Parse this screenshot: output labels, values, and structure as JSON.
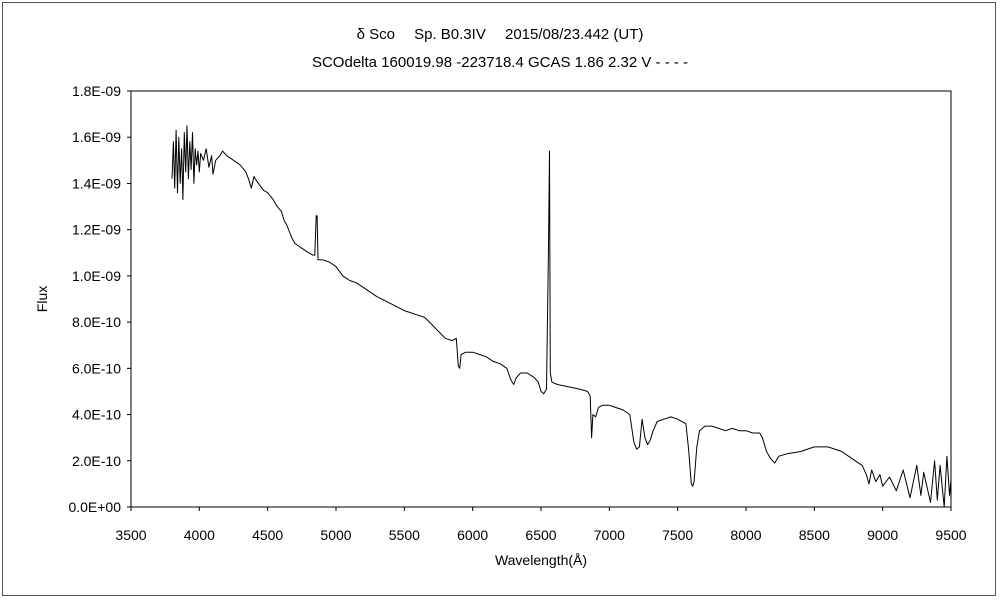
{
  "chart_data": {
    "type": "line",
    "title": "δ Sco　 Sp. B0.3IV　 2015/08/23.442 (UT)",
    "subtitle": "SCOdelta 160019.98 -223718.4 GCAS 1.86 2.32 V - - - -",
    "xlabel": "Wavelength(Å)",
    "ylabel": "Flux",
    "xlim": [
      3500,
      9500
    ],
    "ylim": [
      0,
      1.8e-09
    ],
    "x_ticks": [
      "3500",
      "4000",
      "4500",
      "5000",
      "5500",
      "6000",
      "6500",
      "7000",
      "7500",
      "8000",
      "8500",
      "9000",
      "9500"
    ],
    "y_ticks": [
      "0.0E+00",
      "2.0E-10",
      "4.0E-10",
      "6.0E-10",
      "8.0E-10",
      "1.0E-09",
      "1.2E-09",
      "1.4E-09",
      "1.6E-09",
      "1.8E-09"
    ],
    "grid": false,
    "legend": "none",
    "series": [
      {
        "color": "#000000",
        "points": [
          [
            3800,
            1.42e-09
          ],
          [
            3810,
            1.58e-09
          ],
          [
            3820,
            1.38e-09
          ],
          [
            3830,
            1.63e-09
          ],
          [
            3840,
            1.36e-09
          ],
          [
            3850,
            1.6e-09
          ],
          [
            3860,
            1.4e-09
          ],
          [
            3870,
            1.55e-09
          ],
          [
            3880,
            1.33e-09
          ],
          [
            3890,
            1.62e-09
          ],
          [
            3900,
            1.45e-09
          ],
          [
            3910,
            1.65e-09
          ],
          [
            3920,
            1.42e-09
          ],
          [
            3930,
            1.58e-09
          ],
          [
            3940,
            1.46e-09
          ],
          [
            3950,
            1.62e-09
          ],
          [
            3960,
            1.4e-09
          ],
          [
            3970,
            1.55e-09
          ],
          [
            3980,
            1.48e-09
          ],
          [
            3990,
            1.54e-09
          ],
          [
            4000,
            1.45e-09
          ],
          [
            4010,
            1.53e-09
          ],
          [
            4030,
            1.5e-09
          ],
          [
            4050,
            1.55e-09
          ],
          [
            4070,
            1.47e-09
          ],
          [
            4090,
            1.52e-09
          ],
          [
            4100,
            1.44e-09
          ],
          [
            4120,
            1.5e-09
          ],
          [
            4150,
            1.52e-09
          ],
          [
            4170,
            1.54e-09
          ],
          [
            4200,
            1.52e-09
          ],
          [
            4250,
            1.5e-09
          ],
          [
            4300,
            1.48e-09
          ],
          [
            4340,
            1.45e-09
          ],
          [
            4360,
            1.42e-09
          ],
          [
            4380,
            1.38e-09
          ],
          [
            4400,
            1.43e-09
          ],
          [
            4420,
            1.41e-09
          ],
          [
            4470,
            1.37e-09
          ],
          [
            4500,
            1.36e-09
          ],
          [
            4540,
            1.33e-09
          ],
          [
            4570,
            1.3e-09
          ],
          [
            4600,
            1.28e-09
          ],
          [
            4620,
            1.24e-09
          ],
          [
            4640,
            1.22e-09
          ],
          [
            4660,
            1.19e-09
          ],
          [
            4680,
            1.16e-09
          ],
          [
            4700,
            1.14e-09
          ],
          [
            4750,
            1.12e-09
          ],
          [
            4800,
            1.1e-09
          ],
          [
            4830,
            1.09e-09
          ],
          [
            4845,
            1.09e-09
          ],
          [
            4855,
            1.26e-09
          ],
          [
            4862,
            1.26e-09
          ],
          [
            4868,
            1.07e-09
          ],
          [
            4900,
            1.07e-09
          ],
          [
            4950,
            1.06e-09
          ],
          [
            5000,
            1.04e-09
          ],
          [
            5050,
            1e-09
          ],
          [
            5100,
            9.8e-10
          ],
          [
            5150,
            9.7e-10
          ],
          [
            5200,
            9.5e-10
          ],
          [
            5300,
            9.1e-10
          ],
          [
            5400,
            8.8e-10
          ],
          [
            5500,
            8.5e-10
          ],
          [
            5600,
            8.3e-10
          ],
          [
            5650,
            8.2e-10
          ],
          [
            5700,
            7.9e-10
          ],
          [
            5750,
            7.6e-10
          ],
          [
            5800,
            7.3e-10
          ],
          [
            5850,
            7.2e-10
          ],
          [
            5880,
            7.3e-10
          ],
          [
            5895,
            6.1e-10
          ],
          [
            5905,
            6e-10
          ],
          [
            5915,
            6.6e-10
          ],
          [
            5950,
            6.7e-10
          ],
          [
            6000,
            6.7e-10
          ],
          [
            6050,
            6.6e-10
          ],
          [
            6100,
            6.5e-10
          ],
          [
            6150,
            6.3e-10
          ],
          [
            6200,
            6.2e-10
          ],
          [
            6250,
            6e-10
          ],
          [
            6280,
            5.5e-10
          ],
          [
            6300,
            5.3e-10
          ],
          [
            6320,
            5.6e-10
          ],
          [
            6350,
            5.8e-10
          ],
          [
            6400,
            5.8e-10
          ],
          [
            6450,
            5.6e-10
          ],
          [
            6480,
            5.4e-10
          ],
          [
            6500,
            5e-10
          ],
          [
            6520,
            4.9e-10
          ],
          [
            6540,
            5.1e-10
          ],
          [
            6555,
            1.13e-09
          ],
          [
            6562,
            1.54e-09
          ],
          [
            6568,
            5.8e-10
          ],
          [
            6580,
            5.4e-10
          ],
          [
            6620,
            5.3e-10
          ],
          [
            6700,
            5.2e-10
          ],
          [
            6780,
            5.1e-10
          ],
          [
            6840,
            5e-10
          ],
          [
            6860,
            4.8e-10
          ],
          [
            6870,
            3e-10
          ],
          [
            6880,
            4e-10
          ],
          [
            6900,
            3.9e-10
          ],
          [
            6920,
            4.3e-10
          ],
          [
            6950,
            4.4e-10
          ],
          [
            7000,
            4.4e-10
          ],
          [
            7050,
            4.3e-10
          ],
          [
            7100,
            4.2e-10
          ],
          [
            7150,
            4e-10
          ],
          [
            7180,
            2.8e-10
          ],
          [
            7200,
            2.5e-10
          ],
          [
            7220,
            2.6e-10
          ],
          [
            7240,
            3.8e-10
          ],
          [
            7260,
            3e-10
          ],
          [
            7280,
            2.7e-10
          ],
          [
            7300,
            2.9e-10
          ],
          [
            7320,
            3.3e-10
          ],
          [
            7350,
            3.7e-10
          ],
          [
            7400,
            3.8e-10
          ],
          [
            7450,
            3.9e-10
          ],
          [
            7500,
            3.8e-10
          ],
          [
            7560,
            3.6e-10
          ],
          [
            7580,
            2.5e-10
          ],
          [
            7600,
            1e-10
          ],
          [
            7610,
            9e-11
          ],
          [
            7620,
            1.1e-10
          ],
          [
            7640,
            2.6e-10
          ],
          [
            7660,
            3.3e-10
          ],
          [
            7700,
            3.5e-10
          ],
          [
            7750,
            3.5e-10
          ],
          [
            7800,
            3.4e-10
          ],
          [
            7850,
            3.3e-10
          ],
          [
            7900,
            3.4e-10
          ],
          [
            7950,
            3.3e-10
          ],
          [
            8000,
            3.3e-10
          ],
          [
            8050,
            3.2e-10
          ],
          [
            8100,
            3.2e-10
          ],
          [
            8120,
            3e-10
          ],
          [
            8150,
            2.4e-10
          ],
          [
            8180,
            2.1e-10
          ],
          [
            8210,
            1.9e-10
          ],
          [
            8240,
            2.2e-10
          ],
          [
            8300,
            2.3e-10
          ],
          [
            8400,
            2.4e-10
          ],
          [
            8500,
            2.6e-10
          ],
          [
            8600,
            2.6e-10
          ],
          [
            8700,
            2.4e-10
          ],
          [
            8750,
            2.2e-10
          ],
          [
            8800,
            2e-10
          ],
          [
            8850,
            1.8e-10
          ],
          [
            8880,
            1.4e-10
          ],
          [
            8900,
            1e-10
          ],
          [
            8920,
            1.6e-10
          ],
          [
            8950,
            1.1e-10
          ],
          [
            8980,
            1.4e-10
          ],
          [
            9000,
            9e-11
          ],
          [
            9050,
            1.3e-10
          ],
          [
            9100,
            7e-11
          ],
          [
            9150,
            1.6e-10
          ],
          [
            9200,
            4e-11
          ],
          [
            9250,
            1.8e-10
          ],
          [
            9280,
            5e-11
          ],
          [
            9300,
            1.5e-10
          ],
          [
            9350,
            2e-11
          ],
          [
            9380,
            2e-10
          ],
          [
            9400,
            3e-11
          ],
          [
            9420,
            1.8e-10
          ],
          [
            9450,
            0.0
          ],
          [
            9470,
            2.2e-10
          ],
          [
            9490,
            5e-11
          ],
          [
            9500,
            1.2e-10
          ]
        ]
      }
    ]
  }
}
